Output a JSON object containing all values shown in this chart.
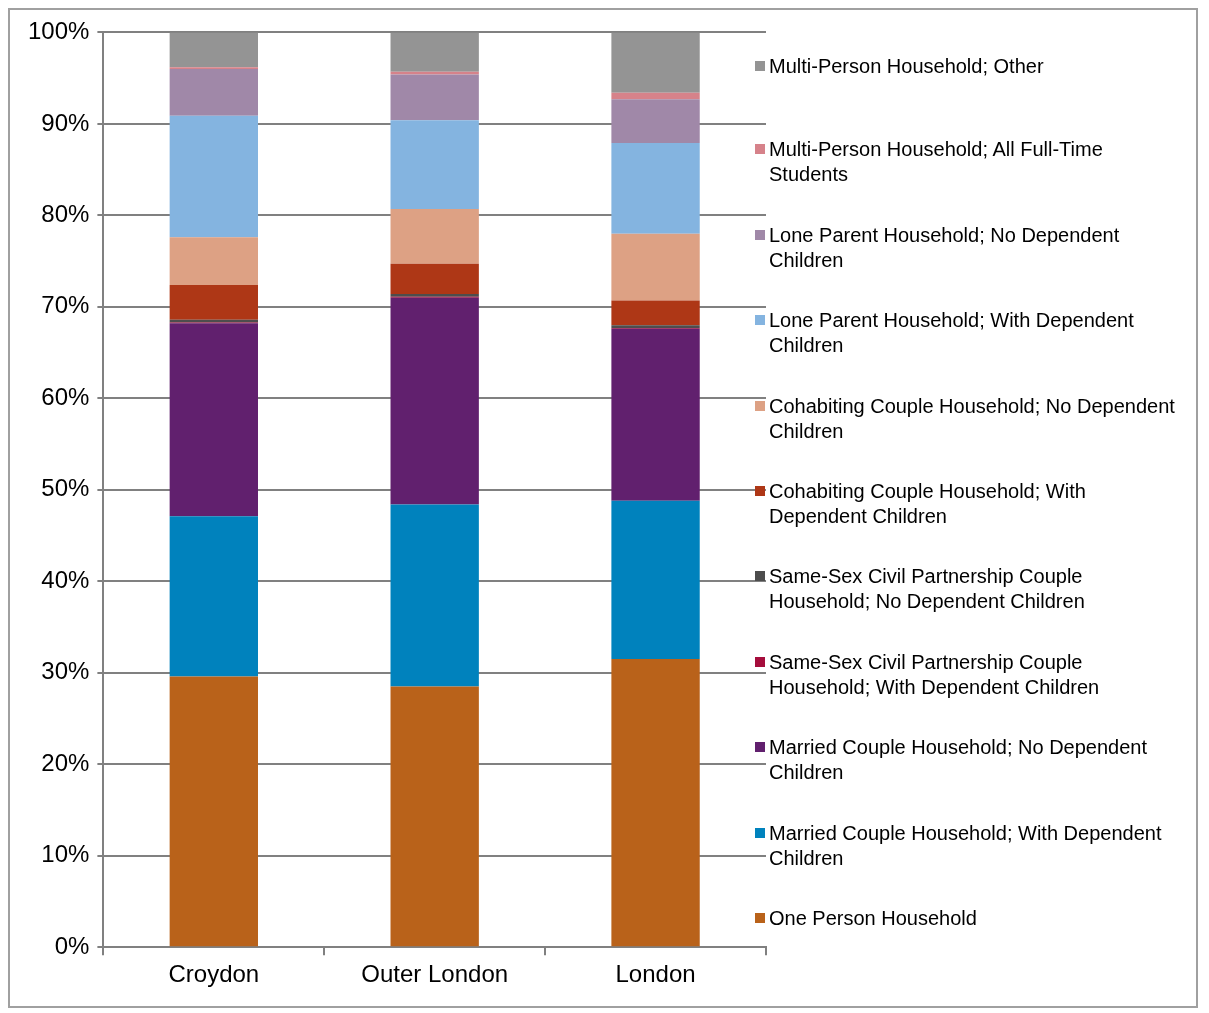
{
  "chart_data": {
    "type": "bar",
    "stacked": true,
    "categories": [
      "Croydon",
      "Outer London",
      "London"
    ],
    "series": [
      {
        "name": "One Person Household",
        "color": "#b9621a",
        "values": [
          29.6,
          28.5,
          31.5
        ]
      },
      {
        "name": "Married Couple Household; With Dependent Children",
        "color": "#0082bd",
        "values": [
          17.5,
          19.9,
          17.3
        ]
      },
      {
        "name": "Married Couple Household; No Dependent Children",
        "color": "#61206e",
        "values": [
          21.1,
          22.6,
          18.8
        ]
      },
      {
        "name": "Same-Sex Civil Partnership Couple Household; With Dependent Children",
        "color": "#a50d3c",
        "values": [
          0.1,
          0.1,
          0.1
        ]
      },
      {
        "name": "Same-Sex Civil Partnership Couple Household; No Dependent Children",
        "color": "#4d4d4d",
        "values": [
          0.3,
          0.3,
          0.3
        ]
      },
      {
        "name": "Cohabiting Couple Household; With Dependent Children",
        "color": "#ae3716",
        "values": [
          3.8,
          3.3,
          2.7
        ]
      },
      {
        "name": "Cohabiting Couple Household; No Dependent Children",
        "color": "#dda184",
        "values": [
          5.2,
          6.0,
          7.3
        ]
      },
      {
        "name": "Lone Parent Household; With Dependent Children",
        "color": "#84b4e0",
        "values": [
          13.3,
          9.7,
          9.9
        ]
      },
      {
        "name": "Lone Parent Household; No Dependent Children",
        "color": "#a088a8",
        "values": [
          5.1,
          5.0,
          4.8
        ]
      },
      {
        "name": "Multi-Person Household; All Full-Time Students",
        "color": "#d6828a",
        "values": [
          0.2,
          0.3,
          0.7
        ]
      },
      {
        "name": "Multi-Person Household; Other",
        "color": "#949494",
        "values": [
          3.8,
          4.3,
          6.6
        ]
      }
    ],
    "ylim": [
      0,
      100
    ],
    "yticks": [
      {
        "value": 0,
        "label": "0%"
      },
      {
        "value": 10,
        "label": "10%"
      },
      {
        "value": 20,
        "label": "20%"
      },
      {
        "value": 30,
        "label": "30%"
      },
      {
        "value": 40,
        "label": "40%"
      },
      {
        "value": 50,
        "label": "50%"
      },
      {
        "value": 60,
        "label": "60%"
      },
      {
        "value": 70,
        "label": "70%"
      },
      {
        "value": 80,
        "label": "80%"
      },
      {
        "value": 90,
        "label": "90%"
      },
      {
        "value": 100,
        "label": "100%"
      }
    ],
    "grid": "y",
    "legend": "right"
  }
}
